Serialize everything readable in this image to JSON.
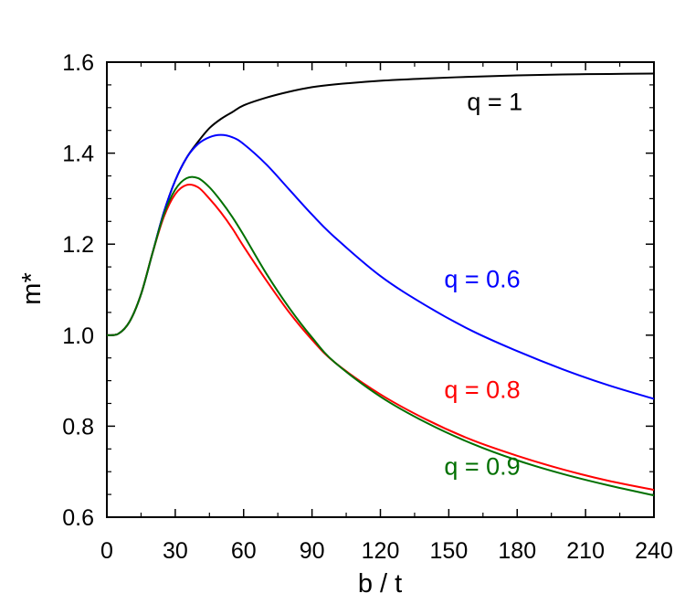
{
  "chart_data": {
    "type": "line",
    "title": "",
    "xlabel": "b / t",
    "ylabel": "m*",
    "xlim": [
      0,
      240
    ],
    "ylim": [
      0.6,
      1.6
    ],
    "grid": false,
    "x_ticks": [
      0,
      30,
      60,
      90,
      120,
      150,
      180,
      210,
      240
    ],
    "y_ticks": [
      0.6,
      0.8,
      1.0,
      1.2,
      1.4,
      1.6
    ],
    "x_tick_labels": [
      "0",
      "30",
      "60",
      "90",
      "120",
      "150",
      "180",
      "210",
      "240"
    ],
    "y_tick_labels": [
      "0.6",
      "0.8",
      "1.0",
      "1.2",
      "1.4",
      "1.6"
    ],
    "series": [
      {
        "name": "q = 1",
        "color": "#000000",
        "x": [
          0,
          5,
          10,
          15,
          20,
          25,
          30,
          35,
          40,
          45,
          50,
          55,
          60,
          70,
          80,
          90,
          100,
          120,
          140,
          160,
          180,
          200,
          220,
          240
        ],
        "y": [
          1.0,
          1.003,
          1.03,
          1.09,
          1.18,
          1.27,
          1.34,
          1.39,
          1.425,
          1.455,
          1.475,
          1.49,
          1.505,
          1.522,
          1.535,
          1.545,
          1.551,
          1.559,
          1.564,
          1.568,
          1.571,
          1.573,
          1.574,
          1.575
        ]
      },
      {
        "name": "q = 0.6",
        "color": "#0000ff",
        "x": [
          0,
          5,
          10,
          15,
          20,
          25,
          30,
          35,
          40,
          45,
          50,
          55,
          60,
          70,
          80,
          90,
          100,
          120,
          140,
          160,
          180,
          200,
          220,
          240
        ],
        "y": [
          1.0,
          1.003,
          1.03,
          1.09,
          1.18,
          1.27,
          1.34,
          1.39,
          1.42,
          1.435,
          1.44,
          1.435,
          1.42,
          1.375,
          1.32,
          1.265,
          1.215,
          1.13,
          1.065,
          1.01,
          0.965,
          0.925,
          0.89,
          0.86
        ]
      },
      {
        "name": "q = 0.8",
        "color": "#ff0000",
        "x": [
          0,
          5,
          10,
          15,
          20,
          25,
          30,
          35,
          40,
          45,
          50,
          55,
          60,
          70,
          80,
          90,
          100,
          120,
          140,
          160,
          180,
          200,
          220,
          240
        ],
        "y": [
          1.0,
          1.003,
          1.03,
          1.09,
          1.18,
          1.26,
          1.31,
          1.33,
          1.325,
          1.3,
          1.27,
          1.235,
          1.195,
          1.12,
          1.05,
          0.99,
          0.94,
          0.87,
          0.815,
          0.77,
          0.735,
          0.705,
          0.68,
          0.66
        ]
      },
      {
        "name": "q = 0.9",
        "color": "#007000",
        "x": [
          0,
          5,
          10,
          15,
          20,
          25,
          30,
          35,
          40,
          45,
          50,
          55,
          60,
          70,
          80,
          90,
          100,
          120,
          140,
          160,
          180,
          200,
          220,
          240
        ],
        "y": [
          1.0,
          1.003,
          1.03,
          1.09,
          1.18,
          1.265,
          1.32,
          1.345,
          1.345,
          1.325,
          1.295,
          1.26,
          1.22,
          1.135,
          1.06,
          0.995,
          0.94,
          0.865,
          0.808,
          0.762,
          0.725,
          0.695,
          0.67,
          0.648
        ]
      }
    ],
    "annotations": [
      {
        "text": "q = 1",
        "color": "#000000",
        "x": 158,
        "y": 1.495
      },
      {
        "text": "q = 0.6",
        "color": "#0000ff",
        "x": 148,
        "y": 1.105
      },
      {
        "text": "q = 0.8",
        "color": "#ff0000",
        "x": 148,
        "y": 0.862
      },
      {
        "text": "q = 0.9",
        "color": "#007000",
        "x": 148,
        "y": 0.693
      }
    ]
  }
}
